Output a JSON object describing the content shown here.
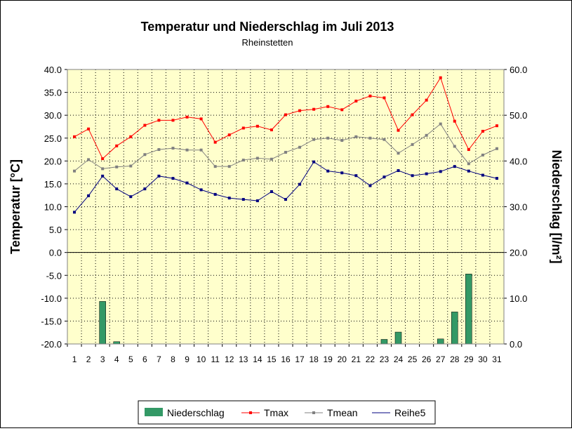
{
  "chart_data": {
    "type": "bar+line",
    "title": "Temperatur und Niederschlag im Juli 2013",
    "subtitle": "Rheinstetten",
    "ylabel_left": "Temperatur [°C]",
    "ylabel_right": "Niederschlag [l/m²]",
    "ylim_left": [
      -20,
      40
    ],
    "ylim_right": [
      0,
      60
    ],
    "yticks_left": [
      "40.0",
      "35.0",
      "30.0",
      "25.0",
      "20.0",
      "15.0",
      "10.0",
      "5.0",
      "0.0",
      "-5.0",
      "-10.0",
      "-15.0",
      "-20.0"
    ],
    "yticks_right": [
      "60.0",
      "50.0",
      "40.0",
      "30.0",
      "20.0",
      "10.0",
      "0.0"
    ],
    "categories": [
      "1",
      "2",
      "3",
      "4",
      "5",
      "6",
      "7",
      "8",
      "9",
      "10",
      "11",
      "12",
      "13",
      "14",
      "15",
      "16",
      "17",
      "18",
      "19",
      "20",
      "21",
      "22",
      "23",
      "24",
      "25",
      "26",
      "27",
      "28",
      "29",
      "30",
      "31"
    ],
    "plot_background": "#ffffcc",
    "grid": true,
    "legend_position": "bottom",
    "series": [
      {
        "name": "Niederschlag",
        "kind": "bar",
        "axis": "right",
        "color": "#339966",
        "values": [
          0,
          0,
          9.3,
          0.5,
          0,
          0,
          0,
          0,
          0,
          0,
          0,
          0,
          0,
          0,
          0,
          0,
          0,
          0,
          0,
          0,
          0,
          0,
          1,
          2.6,
          0,
          0,
          1.1,
          7,
          15.3,
          0,
          0
        ]
      },
      {
        "name": "Tmax",
        "kind": "line",
        "axis": "left",
        "color": "#ff0000",
        "values": [
          25.3,
          27.0,
          20.5,
          23.3,
          25.3,
          27.8,
          28.9,
          28.9,
          29.6,
          29.2,
          24.1,
          25.7,
          27.2,
          27.6,
          26.8,
          30.1,
          31.0,
          31.3,
          31.9,
          31.2,
          33.1,
          34.2,
          33.8,
          26.7,
          30.1,
          33.3,
          38.2,
          28.7,
          22.5,
          26.5,
          27.7
        ]
      },
      {
        "name": "Tmean",
        "kind": "line",
        "axis": "left",
        "color": "#808080",
        "values": [
          17.8,
          20.3,
          18.3,
          18.7,
          18.9,
          21.4,
          22.5,
          22.8,
          22.4,
          22.4,
          18.8,
          18.8,
          20.2,
          20.6,
          20.4,
          21.9,
          23.0,
          24.7,
          25.0,
          24.5,
          25.3,
          25.0,
          24.7,
          21.7,
          23.6,
          25.6,
          28.1,
          23.2,
          19.4,
          21.3,
          22.7
        ]
      },
      {
        "name": "Reihe5",
        "kind": "line",
        "axis": "left",
        "color": "#000080",
        "values": [
          8.8,
          12.4,
          16.7,
          13.9,
          12.2,
          13.9,
          16.7,
          16.2,
          15.2,
          13.7,
          12.7,
          11.9,
          11.6,
          11.3,
          13.3,
          11.6,
          14.9,
          19.8,
          17.8,
          17.4,
          16.8,
          14.6,
          16.5,
          17.9,
          16.8,
          17.2,
          17.7,
          18.8,
          17.8,
          16.9,
          16.2
        ]
      }
    ]
  }
}
